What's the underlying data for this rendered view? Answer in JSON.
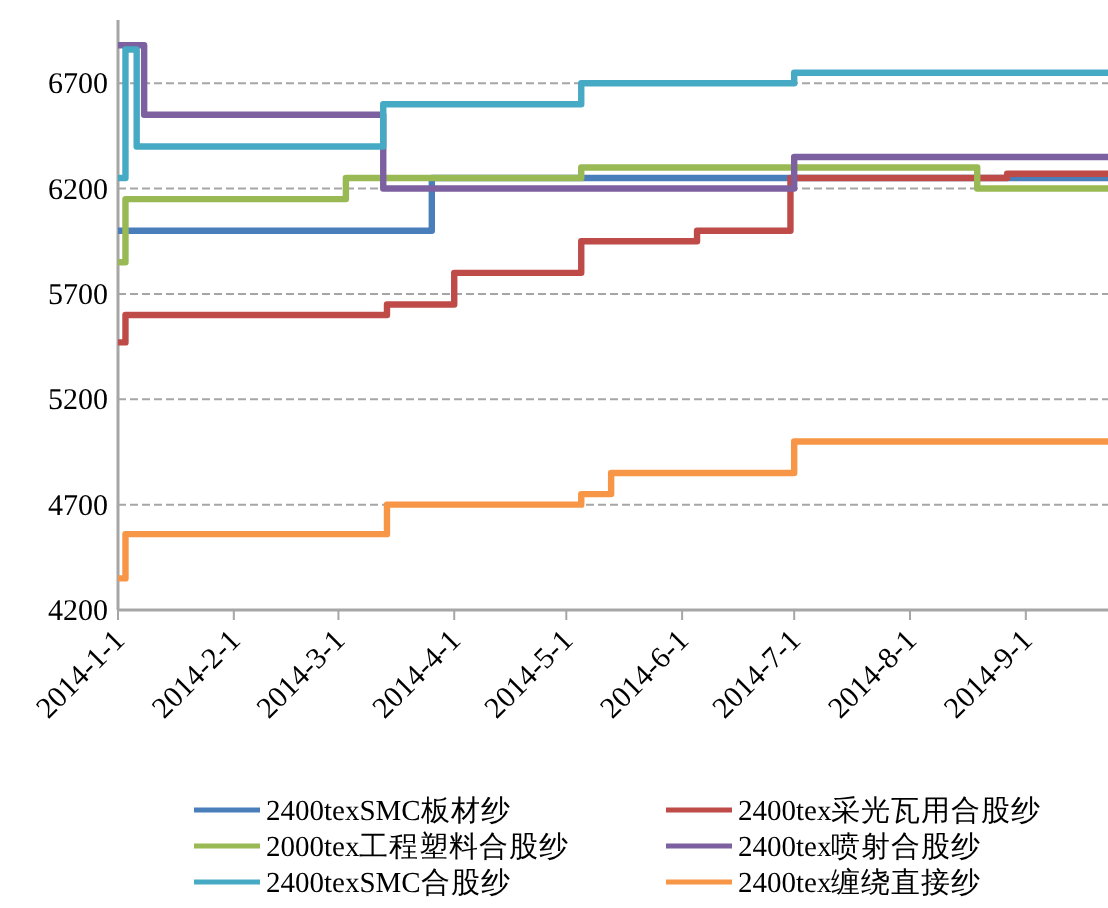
{
  "chart_data": {
    "type": "step",
    "xlim": [
      "2014-01-01",
      "2014-09-23"
    ],
    "xticks": [
      {
        "value": "2014-01-01",
        "label": "2014-1-1"
      },
      {
        "value": "2014-02-01",
        "label": "2014-2-1"
      },
      {
        "value": "2014-03-01",
        "label": "2014-3-1"
      },
      {
        "value": "2014-04-01",
        "label": "2014-4-1"
      },
      {
        "value": "2014-05-01",
        "label": "2014-5-1"
      },
      {
        "value": "2014-06-01",
        "label": "2014-6-1"
      },
      {
        "value": "2014-07-01",
        "label": "2014-7-1"
      },
      {
        "value": "2014-08-01",
        "label": "2014-8-1"
      },
      {
        "value": "2014-09-01",
        "label": "2014-9-1"
      }
    ],
    "ylim": [
      4200,
      7000
    ],
    "yticks": [
      4200,
      4700,
      5200,
      5700,
      6200,
      6700
    ],
    "grid": "y",
    "legend": "bottom",
    "series": [
      {
        "name": "2400texSMC板材纱",
        "color": "#4a7ebb",
        "x": [
          "2014-01-01",
          "2014-03-26",
          "2014-09-23"
        ],
        "values": [
          6000,
          6250,
          6250
        ]
      },
      {
        "name": "2400tex采光瓦用合股纱",
        "color": "#be4b48",
        "x": [
          "2014-01-01",
          "2014-01-03",
          "2014-03-14",
          "2014-04-01",
          "2014-05-05",
          "2014-06-05",
          "2014-06-30",
          "2014-08-27",
          "2014-09-23"
        ],
        "values": [
          5470,
          5600,
          5650,
          5800,
          5950,
          6000,
          6250,
          6270,
          6270
        ]
      },
      {
        "name": "2000tex工程塑料合股纱",
        "color": "#98b954",
        "x": [
          "2014-01-01",
          "2014-01-03",
          "2014-03-03",
          "2014-05-05",
          "2014-08-19",
          "2014-09-23"
        ],
        "values": [
          5850,
          6150,
          6250,
          6300,
          6200,
          6200
        ]
      },
      {
        "name": "2400tex喷射合股纱",
        "color": "#7d60a0",
        "x": [
          "2014-01-01",
          "2014-01-08",
          "2014-03-13",
          "2014-07-01",
          "2014-09-23"
        ],
        "values": [
          6880,
          6550,
          6200,
          6350,
          6350
        ]
      },
      {
        "name": "2400texSMC合股纱",
        "color": "#46aac5",
        "x": [
          "2014-01-01",
          "2014-01-03",
          "2014-01-06",
          "2014-03-13",
          "2014-05-05",
          "2014-07-01",
          "2014-09-23"
        ],
        "values": [
          6250,
          6860,
          6400,
          6600,
          6700,
          6750,
          6750
        ]
      },
      {
        "name": "2400tex缠绕直接纱",
        "color": "#f79646",
        "x": [
          "2014-01-01",
          "2014-01-03",
          "2014-03-14",
          "2014-05-05",
          "2014-05-13",
          "2014-07-01",
          "2014-09-23"
        ],
        "values": [
          4350,
          4560,
          4700,
          4750,
          4850,
          5000,
          5000
        ]
      }
    ]
  }
}
